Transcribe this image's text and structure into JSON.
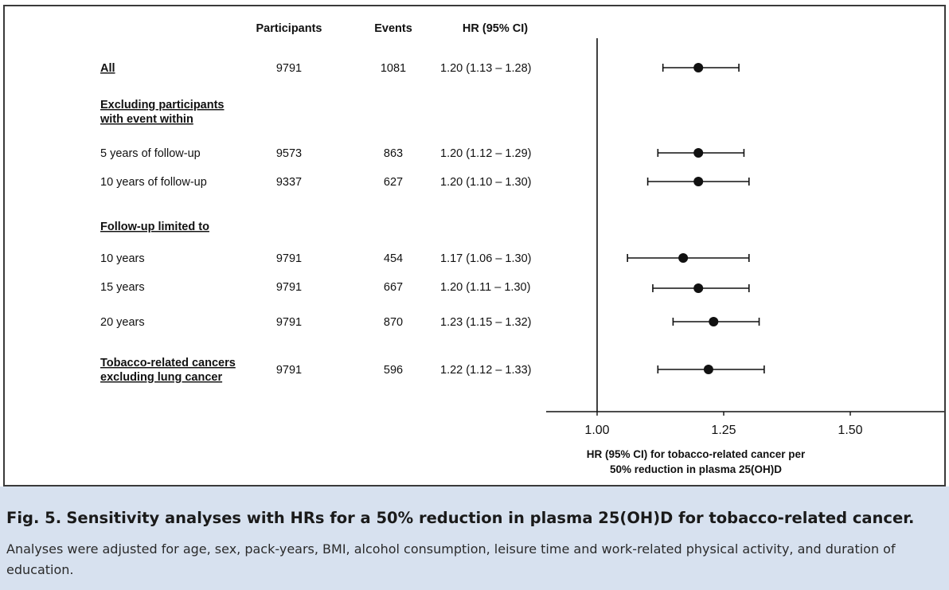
{
  "chart_data": {
    "type": "forest",
    "columns": {
      "participants": "Participants",
      "events": "Events",
      "hr": "HR (95% CI)"
    },
    "rows": [
      {
        "kind": "heading",
        "label": "All",
        "participants": "9791",
        "events": "1081",
        "hr_text": "1.20 (1.13 – 1.28)",
        "hr": 1.2,
        "lo": 1.13,
        "hi": 1.28
      },
      {
        "kind": "heading",
        "label": "Excluding participants",
        "label2": "with event within"
      },
      {
        "kind": "item",
        "label": "5 years of follow-up",
        "participants": "9573",
        "events": "863",
        "hr_text": "1.20 (1.12 – 1.29)",
        "hr": 1.2,
        "lo": 1.12,
        "hi": 1.29
      },
      {
        "kind": "item",
        "label": "10 years of follow-up",
        "participants": "9337",
        "events": "627",
        "hr_text": "1.20 (1.10 – 1.30)",
        "hr": 1.2,
        "lo": 1.1,
        "hi": 1.3
      },
      {
        "kind": "heading",
        "label": "Follow-up limited to"
      },
      {
        "kind": "item",
        "label": "10 years",
        "participants": "9791",
        "events": "454",
        "hr_text": "1.17 (1.06 – 1.30)",
        "hr": 1.17,
        "lo": 1.06,
        "hi": 1.3
      },
      {
        "kind": "item",
        "label": "15 years",
        "participants": "9791",
        "events": "667",
        "hr_text": "1.20 (1.11 – 1.30)",
        "hr": 1.2,
        "lo": 1.11,
        "hi": 1.3
      },
      {
        "kind": "item",
        "label": "20 years",
        "participants": "9791",
        "events": "870",
        "hr_text": "1.23 (1.15 – 1.32)",
        "hr": 1.23,
        "lo": 1.15,
        "hi": 1.32
      },
      {
        "kind": "heading",
        "label": "Tobacco-related cancers",
        "label2": "excluding lung cancer",
        "participants": "9791",
        "events": "596",
        "hr_text": "1.22 (1.12 – 1.33)",
        "hr": 1.22,
        "lo": 1.12,
        "hi": 1.33
      }
    ],
    "xaxis": {
      "ticks": [
        1.0,
        1.25,
        1.5
      ],
      "tick_labels": [
        "1.00",
        "1.25",
        "1.50"
      ],
      "xlim": [
        0.85,
        1.5
      ],
      "reference_line": 1.0,
      "label_line1": "HR (95% CI) for tobacco-related cancer per",
      "label_line2": "50% reduction in plasma 25(OH)D"
    },
    "grid": false
  },
  "caption": {
    "fig_label": "Fig. 5.",
    "title": "Sensitivity analyses with HRs for a 50% reduction in plasma 25(OH)D for tobacco-related cancer.",
    "body": "Analyses were adjusted for age, sex, pack-years, BMI, alcohol consumption, leisure time and work-related physical activity, and duration of education."
  },
  "colors": {
    "caption_bg": "#d7e1ef",
    "ink": "#111111"
  }
}
